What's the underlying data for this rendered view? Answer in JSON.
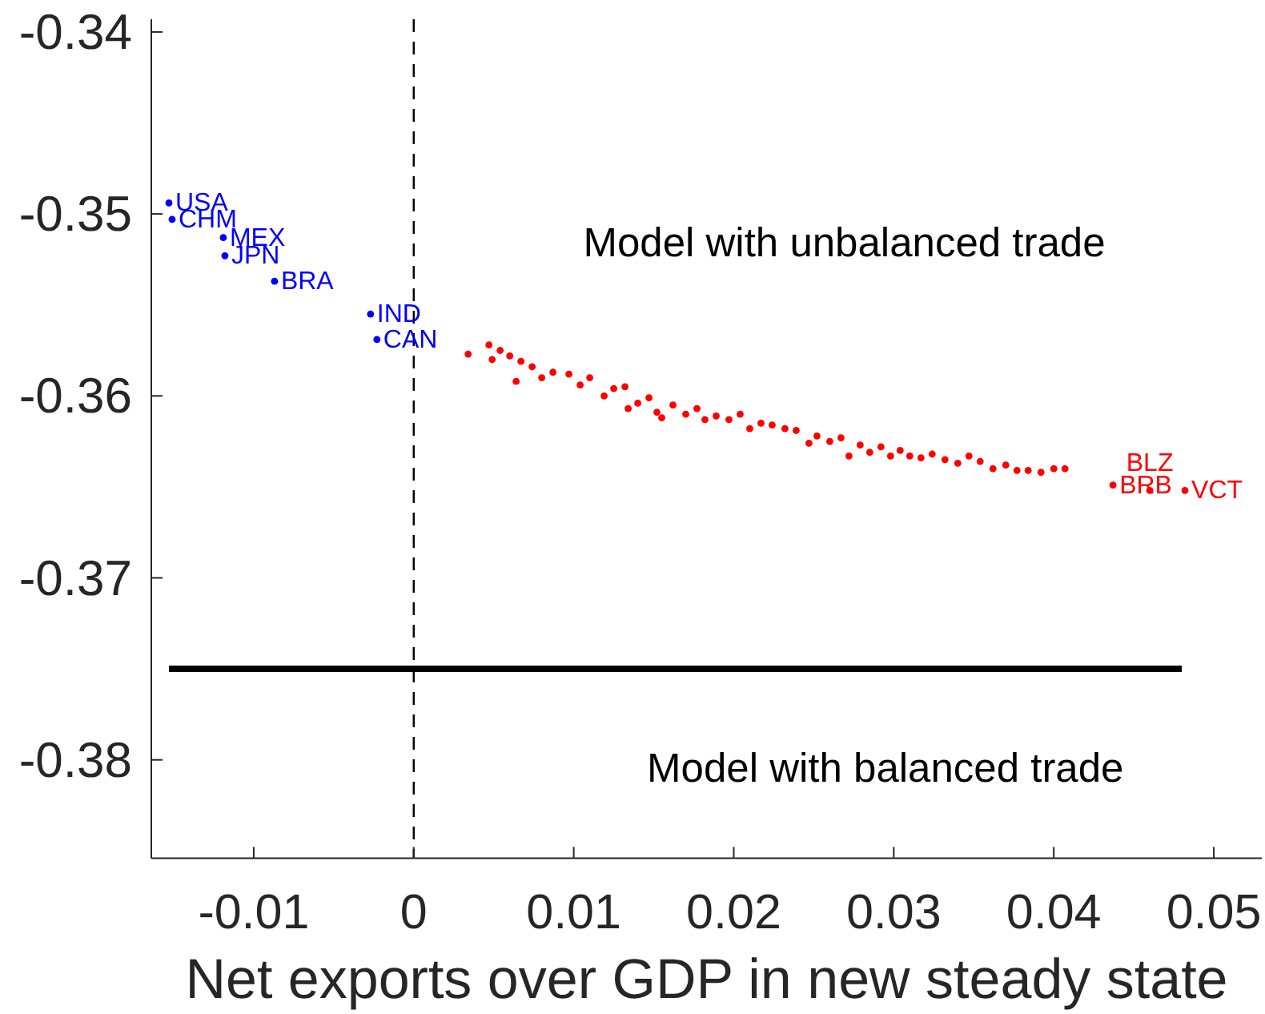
{
  "chart_data": {
    "type": "scatter",
    "xlabel": "Net exports over GDP in new steady state",
    "xlim": [
      -0.0164,
      0.053
    ],
    "xticks": [
      -0.01,
      0,
      0.01,
      0.02,
      0.03,
      0.04,
      0.05
    ],
    "ylim": [
      -0.3854,
      -0.3393
    ],
    "yticks": [
      -0.38,
      -0.37,
      -0.36,
      -0.35,
      -0.34
    ],
    "series": [
      {
        "color": "#0000ff",
        "marker": "circle",
        "x": [
          -0.0153,
          -0.0151,
          -0.0119,
          -0.0118,
          -0.0087,
          -0.0027,
          -0.0023
        ],
        "values": [
          -0.3494,
          -0.3503,
          -0.3513,
          -0.3523,
          -0.3537,
          -0.3555,
          -0.3569
        ],
        "value_labels": [
          "USA",
          "CHM",
          "MEX",
          "JPN",
          "BRA",
          "IND",
          "CAN"
        ]
      },
      {
        "color": "#ff0000",
        "marker": "circle",
        "x": [
          0.0034,
          0.0047,
          0.0049,
          0.0054,
          0.006,
          0.0067,
          0.0064,
          0.0074,
          0.008,
          0.0087,
          0.0097,
          0.0104,
          0.011,
          0.0119,
          0.0125,
          0.0132,
          0.0134,
          0.014,
          0.0147,
          0.0152,
          0.0155,
          0.0162,
          0.017,
          0.0177,
          0.0182,
          0.0189,
          0.0197,
          0.0204,
          0.021,
          0.0217,
          0.0224,
          0.0232,
          0.0239,
          0.0247,
          0.0252,
          0.026,
          0.0267,
          0.0272,
          0.0279,
          0.0285,
          0.0292,
          0.0298,
          0.0304,
          0.031,
          0.0317,
          0.0324,
          0.0332,
          0.034,
          0.0347,
          0.0354,
          0.0362,
          0.037,
          0.0377,
          0.0384,
          0.0392,
          0.04,
          0.0407,
          0.0437,
          0.046,
          0.0482
        ],
        "values": [
          -0.3577,
          -0.3572,
          -0.358,
          -0.3575,
          -0.3578,
          -0.3581,
          -0.3592,
          -0.3584,
          -0.359,
          -0.3587,
          -0.3588,
          -0.3594,
          -0.359,
          -0.36,
          -0.3596,
          -0.3595,
          -0.3607,
          -0.3604,
          -0.3601,
          -0.3609,
          -0.3612,
          -0.3605,
          -0.361,
          -0.3607,
          -0.3613,
          -0.3611,
          -0.3613,
          -0.361,
          -0.3618,
          -0.3615,
          -0.3616,
          -0.3618,
          -0.3619,
          -0.3626,
          -0.3622,
          -0.3625,
          -0.3623,
          -0.3633,
          -0.3627,
          -0.3631,
          -0.3628,
          -0.3633,
          -0.363,
          -0.3633,
          -0.3634,
          -0.3632,
          -0.3635,
          -0.3637,
          -0.3633,
          -0.3636,
          -0.364,
          -0.3638,
          -0.3641,
          -0.3641,
          -0.3642,
          -0.364,
          -0.364,
          -0.3649,
          -0.3652,
          -0.3652
        ],
        "value_labels": [
          null,
          null,
          null,
          null,
          null,
          null,
          null,
          null,
          null,
          null,
          null,
          null,
          null,
          null,
          null,
          null,
          null,
          null,
          null,
          null,
          null,
          null,
          null,
          null,
          null,
          null,
          null,
          null,
          null,
          null,
          null,
          null,
          null,
          null,
          null,
          null,
          null,
          null,
          null,
          null,
          null,
          null,
          null,
          null,
          null,
          null,
          null,
          null,
          null,
          null,
          null,
          null,
          null,
          null,
          null,
          null,
          null,
          "BRB",
          "BLZ",
          "VCT"
        ]
      },
      {
        "type": "line",
        "color": "#000000",
        "x": [
          -0.0153,
          0.048
        ],
        "values": [
          -0.375,
          -0.375
        ]
      }
    ],
    "ref_lines": [
      {
        "axis": "x",
        "value": 0,
        "color": "#000000",
        "line_style": "dashed"
      }
    ],
    "annotations": [
      "Model with unbalanced trade",
      "Model with balanced trade"
    ]
  }
}
